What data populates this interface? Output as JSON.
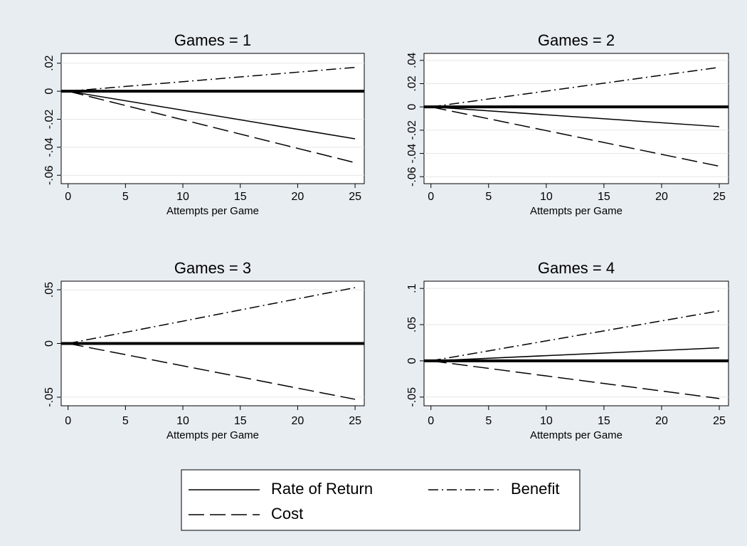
{
  "chart_data": [
    {
      "type": "line",
      "title": "Games = 1",
      "x_label": "Attempts per Game",
      "x": [
        0,
        25
      ],
      "series": [
        {
          "name": "Rate of Return",
          "color": "#000000",
          "dash": "solid",
          "values": [
            0,
            -0.034
          ]
        },
        {
          "name": "Benefit",
          "color": "#000000",
          "dash": "dashdot",
          "values": [
            0,
            0.017
          ]
        },
        {
          "name": "Cost",
          "color": "#000000",
          "dash": "dash",
          "values": [
            0,
            -0.051
          ]
        }
      ],
      "reference_line": 0,
      "grid": true,
      "xlim": [
        -0.6,
        25.8
      ],
      "xticks": [
        0,
        5,
        10,
        15,
        20,
        25
      ],
      "ylim": [
        -0.066,
        0.027
      ],
      "yticks": [
        {
          "value": -0.06,
          "label": "-.06"
        },
        {
          "value": -0.04,
          "label": "-.04"
        },
        {
          "value": -0.02,
          "label": "-.02"
        },
        0,
        {
          "value": 0.02,
          "label": ".02"
        }
      ]
    },
    {
      "type": "line",
      "title": "Games = 2",
      "x_label": "Attempts per Game",
      "x": [
        0,
        25
      ],
      "series": [
        {
          "name": "Rate of Return",
          "color": "#000000",
          "dash": "solid",
          "values": [
            0,
            -0.017
          ]
        },
        {
          "name": "Benefit",
          "color": "#000000",
          "dash": "dashdot",
          "values": [
            0,
            0.034
          ]
        },
        {
          "name": "Cost",
          "color": "#000000",
          "dash": "dash",
          "values": [
            0,
            -0.051
          ]
        }
      ],
      "reference_line": 0,
      "grid": true,
      "xlim": [
        -0.6,
        25.8
      ],
      "xticks": [
        0,
        5,
        10,
        15,
        20,
        25
      ],
      "ylim": [
        -0.066,
        0.046
      ],
      "yticks": [
        {
          "value": -0.06,
          "label": "-.06"
        },
        {
          "value": -0.04,
          "label": "-.04"
        },
        {
          "value": -0.02,
          "label": "-.02"
        },
        0,
        {
          "value": 0.02,
          "label": ".02"
        },
        {
          "value": 0.04,
          "label": ".04"
        }
      ]
    },
    {
      "type": "line",
      "title": "Games = 3",
      "x_label": "Attempts per Game",
      "x": [
        0,
        25
      ],
      "series": [
        {
          "name": "Rate of Return",
          "color": "#000000",
          "dash": "solid",
          "values": [
            0,
            0
          ]
        },
        {
          "name": "Benefit",
          "color": "#000000",
          "dash": "dashdot",
          "values": [
            0,
            0.052
          ]
        },
        {
          "name": "Cost",
          "color": "#000000",
          "dash": "dash",
          "values": [
            0,
            -0.052
          ]
        }
      ],
      "reference_line": 0,
      "grid": true,
      "xlim": [
        -0.6,
        25.8
      ],
      "xticks": [
        0,
        5,
        10,
        15,
        20,
        25
      ],
      "ylim": [
        -0.058,
        0.058
      ],
      "yticks": [
        {
          "value": -0.05,
          "label": "-.05"
        },
        0,
        {
          "value": 0.05,
          "label": ".05"
        }
      ]
    },
    {
      "type": "line",
      "title": "Games = 4",
      "x_label": "Attempts per Game",
      "x": [
        0,
        25
      ],
      "series": [
        {
          "name": "Rate of Return",
          "color": "#000000",
          "dash": "solid",
          "values": [
            0,
            0.018
          ]
        },
        {
          "name": "Benefit",
          "color": "#000000",
          "dash": "dashdot",
          "values": [
            0,
            0.069
          ]
        },
        {
          "name": "Cost",
          "color": "#000000",
          "dash": "dash",
          "values": [
            0,
            -0.052
          ]
        }
      ],
      "reference_line": 0,
      "grid": true,
      "xlim": [
        -0.6,
        25.8
      ],
      "xticks": [
        0,
        5,
        10,
        15,
        20,
        25
      ],
      "ylim": [
        -0.062,
        0.11
      ],
      "yticks": [
        {
          "value": -0.05,
          "label": "-.05"
        },
        0,
        {
          "value": 0.05,
          "label": ".05"
        },
        {
          "value": 0.1,
          "label": ".1"
        }
      ]
    }
  ]
}
